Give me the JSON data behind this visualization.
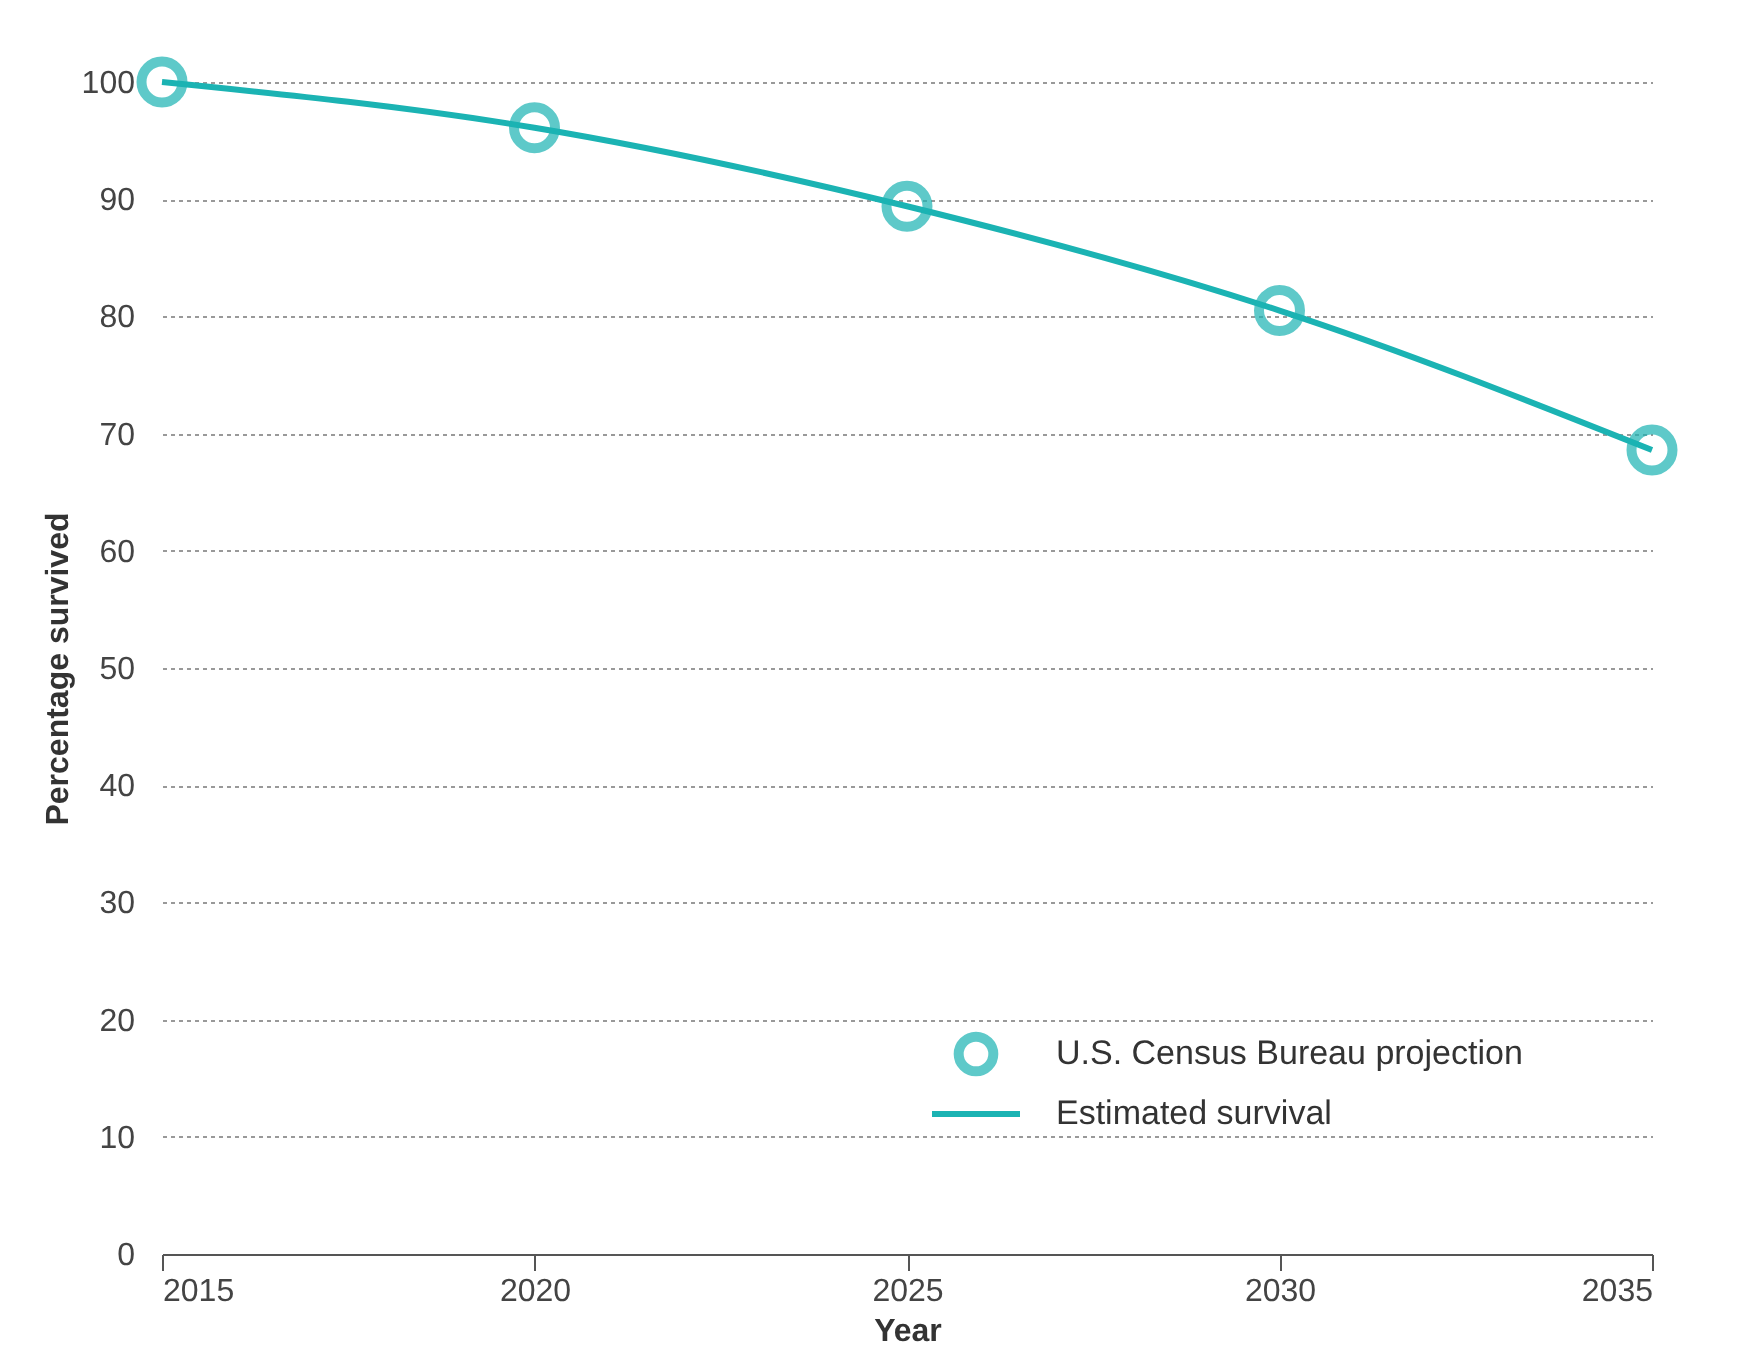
{
  "chart_data": {
    "type": "line",
    "xlabel": "Year",
    "ylabel": "Percentage survived",
    "x": [
      2015,
      2020,
      2025,
      2030,
      2035
    ],
    "series": [
      {
        "name": "U.S. Census Bureau projection",
        "type": "scatter",
        "color": "#1bb3b3",
        "marker": "circle",
        "values": [
          100,
          96.1,
          89.4,
          80.5,
          68.6
        ]
      },
      {
        "name": "Estimated survival",
        "color": "#1bb3b3",
        "line_style": "solid",
        "values": [
          100,
          96.1,
          89.4,
          80.5,
          68.6
        ]
      }
    ],
    "xlim": [
      2015,
      2035
    ],
    "xticks": [
      2015,
      2020,
      2025,
      2030,
      2035
    ],
    "ylim": [
      0,
      100
    ],
    "yticks": [
      0,
      10,
      20,
      30,
      40,
      50,
      60,
      70,
      80,
      90,
      100
    ],
    "grid": "y",
    "legend": "bottom right"
  }
}
